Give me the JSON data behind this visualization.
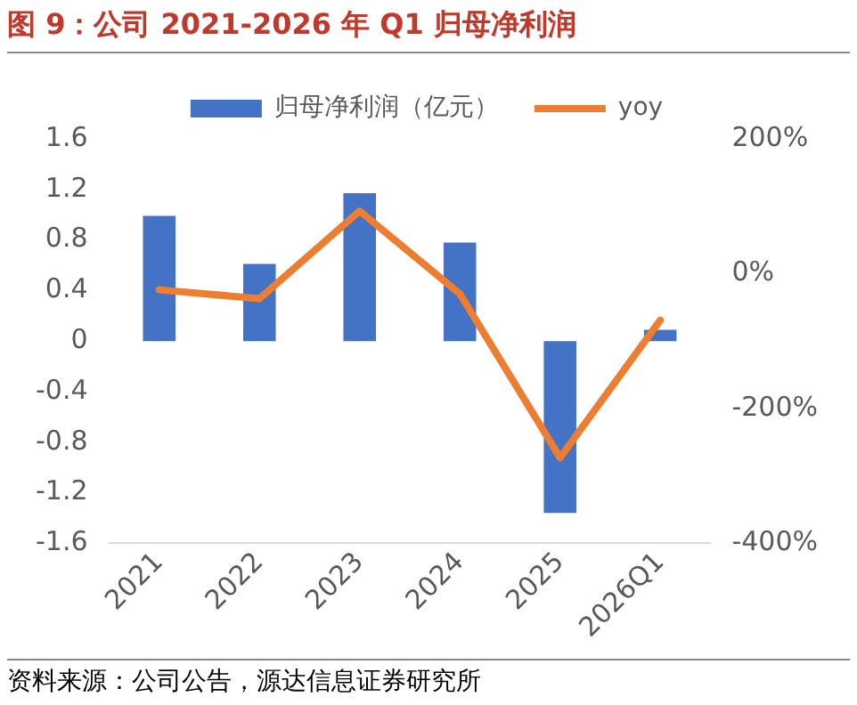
{
  "chart_data": {
    "type": "bar",
    "title": "图 9：公司 2021-2026 年 Q1 归母净利润",
    "categories": [
      "2021",
      "2022",
      "2023",
      "2024",
      "2025",
      "2026Q1"
    ],
    "series": [
      {
        "name": "归母净利润（亿元）",
        "color": "#4472c4",
        "values": [
          0.99,
          0.61,
          1.17,
          0.78,
          -1.36,
          0.09
        ]
      },
      {
        "name": "yoy",
        "type": "line",
        "axis": "y2",
        "color": "#ed7d31",
        "values": [
          -24,
          -37,
          93,
          -30,
          -273,
          -69
        ]
      }
    ],
    "ylim": [
      -1.6,
      1.6
    ],
    "yticks": [
      -1.6,
      -1.2,
      -0.8,
      -0.4,
      0,
      0.4,
      0.8,
      1.2,
      1.6
    ],
    "y2lim": [
      -400,
      200
    ],
    "y2ticks": [
      {
        "value": -400,
        "label": "-400%"
      },
      {
        "value": -200,
        "label": "-200%"
      },
      {
        "value": 0,
        "label": "0%"
      },
      {
        "value": 200,
        "label": "200%"
      }
    ],
    "grid": false,
    "legend": "top",
    "marker": "none",
    "line_style": "solid",
    "annotations": [
      "资料来源：公司公告，源达信息证券研究所"
    ]
  }
}
